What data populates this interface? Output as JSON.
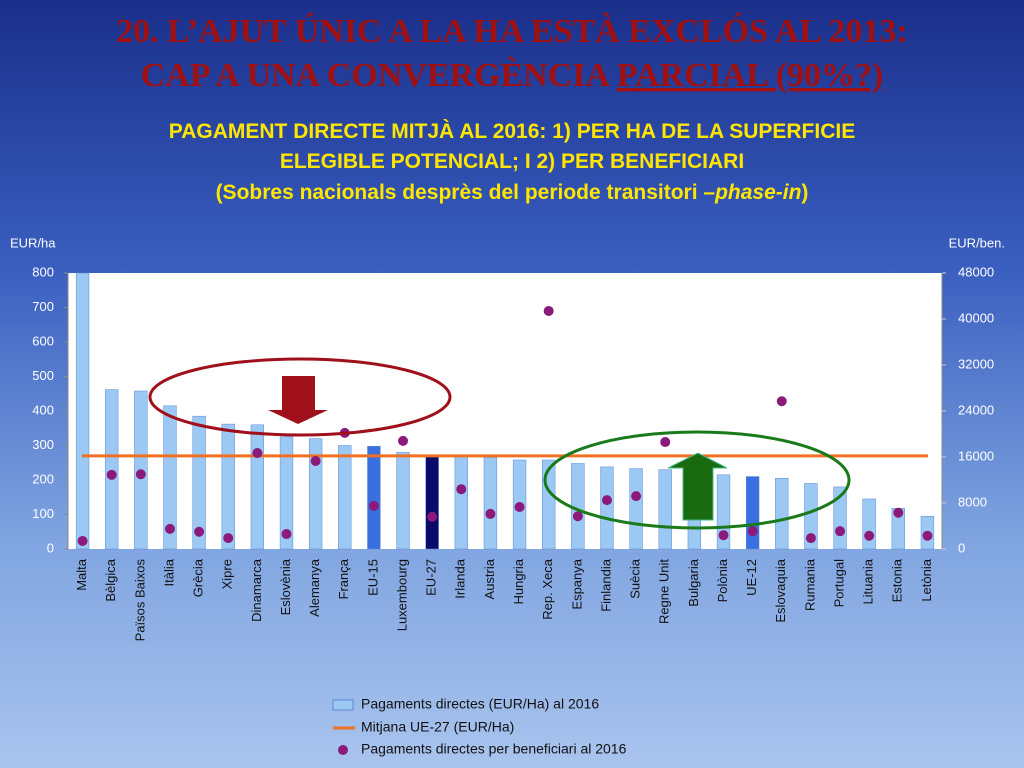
{
  "title_lines": [
    "20. L’AJUT ÚNIC A LA HA ESTÀ EXCLÓS AL 2013:",
    "CAP A UNA CONVERGÈNCIA ",
    "PARCIAL (90%?)"
  ],
  "subtitle_lines": [
    "PAGAMENT DIRECTE MITJÀ AL 2016: 1)  PER HA DE LA SUPERFICIE",
    "ELEGIBLE POTENCIAL; I 2)  PER BENEFICIARI",
    "(Sobres nacionals desprès del periode transitori –",
    "phase-in",
    ")"
  ],
  "chart_data": {
    "type": "bar",
    "y_label": "EUR/ha",
    "y2_label": "EUR/ben.",
    "categories": [
      "Malta",
      "Bèlgica",
      "Països Baixos",
      "Itàlia",
      "Grècia",
      "Xipre",
      "Dinamarca",
      "Eslovènia",
      "Alemanya",
      "França",
      "EU-15",
      "Luxembourg",
      "EU-27",
      "Irlanda",
      "Austria",
      "Hungria",
      "Rep. Xeca",
      "Espanya",
      "Finlandia",
      "Suècia",
      "Regne Unit",
      "Bulgaria",
      "Polònia",
      "UE-12",
      "Eslovaquia",
      "Rumania",
      "Portugal",
      "Lituania",
      "Estonia",
      "Letònia"
    ],
    "series": [
      {
        "name": "Pagaments directes (EUR/Ha) al 2016",
        "color": "#9cc8f4",
        "colors": [
          "#9cc8f4",
          "#9cc8f4",
          "#9cc8f4",
          "#9cc8f4",
          "#9cc8f4",
          "#9cc8f4",
          "#9cc8f4",
          "#9cc8f4",
          "#9cc8f4",
          "#9cc8f4",
          "#3a6fe0",
          "#9cc8f4",
          "#0a0a6a",
          "#9cc8f4",
          "#9cc8f4",
          "#9cc8f4",
          "#9cc8f4",
          "#9cc8f4",
          "#9cc8f4",
          "#9cc8f4",
          "#9cc8f4",
          "#9cc8f4",
          "#9cc8f4",
          "#3a6fe0",
          "#9cc8f4",
          "#9cc8f4",
          "#9cc8f4",
          "#9cc8f4",
          "#9cc8f4",
          "#9cc8f4"
        ],
        "values": [
          800,
          462,
          458,
          415,
          385,
          362,
          360,
          325,
          320,
          300,
          298,
          280,
          270,
          270,
          265,
          258,
          258,
          248,
          238,
          233,
          230,
          225,
          215,
          210,
          205,
          190,
          180,
          145,
          118,
          95
        ]
      },
      {
        "name": "Pagaments directes per beneficiari al 2016",
        "color": "#8b1a7a",
        "axis": "y2",
        "values": [
          1400,
          12900,
          13000,
          3500,
          3000,
          1900,
          16700,
          2600,
          15300,
          20200,
          7500,
          18800,
          5600,
          10400,
          6100,
          7300,
          41400,
          5700,
          8500,
          9200,
          18600,
          null,
          2400,
          3100,
          25700,
          1900,
          3100,
          2300,
          6300,
          2300
        ]
      }
    ],
    "mean": {
      "name": "Mitjana UE-27 (EUR/Ha)",
      "value": 270,
      "color": "#f07020"
    },
    "ylim": [
      0,
      800
    ],
    "yticks": [
      0,
      100,
      200,
      300,
      400,
      500,
      600,
      700,
      800
    ],
    "y2lim": [
      0,
      48000
    ],
    "y2ticks": [
      0,
      8000,
      16000,
      24000,
      32000,
      40000,
      48000
    ],
    "grid": false
  }
}
